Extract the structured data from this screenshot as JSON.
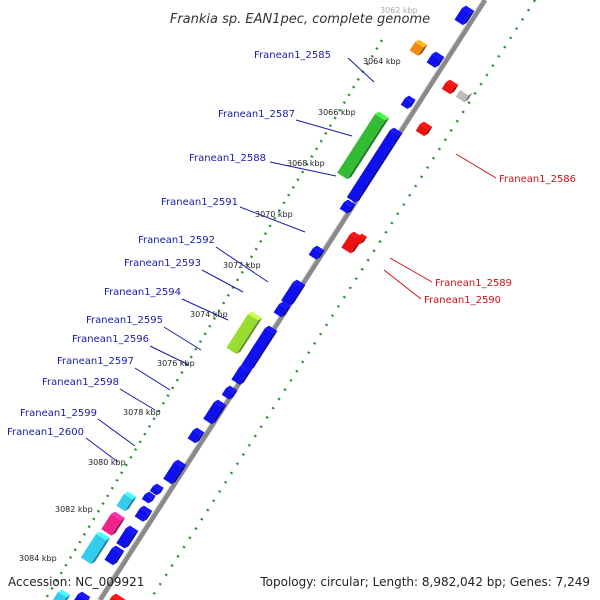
{
  "title": "Frankia sp. EAN1pec, complete genome",
  "footer": {
    "accession": "Accession: NC_009921",
    "stats": "Topology: circular; Length: 8,982,042 bp; Genes: 7,249"
  },
  "colors": {
    "backbone": "#8a8a8a",
    "tick_green": "#2f8f2f",
    "gene_blue": "#1010ee",
    "gene_red": "#ee1111",
    "gene_green": "#33bb33",
    "gene_lime": "#99dd33",
    "gene_orange": "#ee8811",
    "gene_gray": "#bbbbbb",
    "gene_cyan": "#33ccee",
    "gene_pink": "#ee2288",
    "label_blue": "#1a1aa8",
    "label_red": "#cc1111"
  },
  "kbp_ticks": [
    "3062 kbp",
    "3064 kbp",
    "3066 kbp",
    "3068 kbp",
    "3070 kbp",
    "3072 kbp",
    "3074 kbp",
    "3076 kbp",
    "3078 kbp",
    "3080 kbp",
    "3082 kbp",
    "3084 kbp"
  ],
  "genes_left": [
    "Franean1_2585",
    "Franean1_2587",
    "Franean1_2588",
    "Franean1_2591",
    "Franean1_2592",
    "Franean1_2593",
    "Franean1_2594",
    "Franean1_2595",
    "Franean1_2596",
    "Franean1_2597",
    "Franean1_2598",
    "Franean1_2599",
    "Franean1_2600"
  ],
  "genes_right": [
    "Franean1_2586",
    "Franean1_2589",
    "Franean1_2590"
  ]
}
